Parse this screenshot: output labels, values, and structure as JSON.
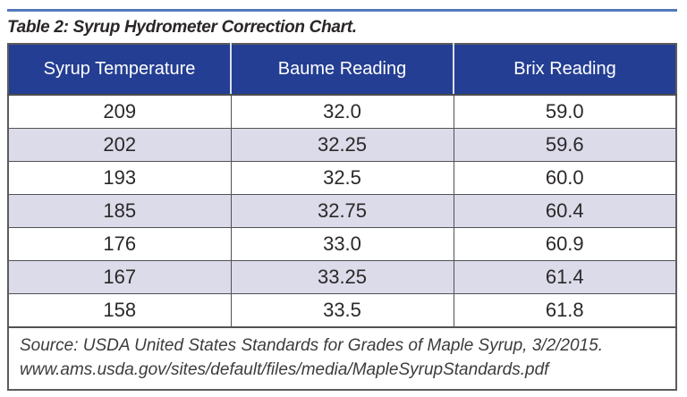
{
  "page": {
    "title": "Table 2: Syrup Hydrometer Correction Chart.",
    "colors": {
      "header_bg": "#243e93",
      "header_text": "#ffffff",
      "row_alt_bg": "#dcdbe9",
      "top_rule_blue": "#5278bc",
      "border_gray": "#515254",
      "body_text": "#2b2829"
    }
  },
  "chart_data": {
    "type": "table",
    "title": "Table 2: Syrup Hydrometer Correction Chart.",
    "columns": [
      "Syrup Temperature",
      "Baume Reading",
      "Brix Reading"
    ],
    "rows": [
      [
        "209",
        "32.0",
        "59.0"
      ],
      [
        "202",
        "32.25",
        "59.6"
      ],
      [
        "193",
        "32.5",
        "60.0"
      ],
      [
        "185",
        "32.75",
        "60.4"
      ],
      [
        "176",
        "33.0",
        "60.9"
      ],
      [
        "167",
        "33.25",
        "61.4"
      ],
      [
        "158",
        "33.5",
        "61.8"
      ]
    ]
  },
  "table": {
    "headers": [
      "Syrup Temperature",
      "Baume Reading",
      "Brix Reading"
    ],
    "rows": [
      [
        "209",
        "32.0",
        "59.0"
      ],
      [
        "202",
        "32.25",
        "59.6"
      ],
      [
        "193",
        "32.5",
        "60.0"
      ],
      [
        "185",
        "32.75",
        "60.4"
      ],
      [
        "176",
        "33.0",
        "60.9"
      ],
      [
        "167",
        "33.25",
        "61.4"
      ],
      [
        "158",
        "33.5",
        "61.8"
      ]
    ],
    "source_line1": "Source: USDA United States Standards for Grades of Maple Syrup, 3/2/2015.",
    "source_line2": "www.ams.usda.gov/sites/default/files/media/MapleSyrupStandards.pdf"
  }
}
